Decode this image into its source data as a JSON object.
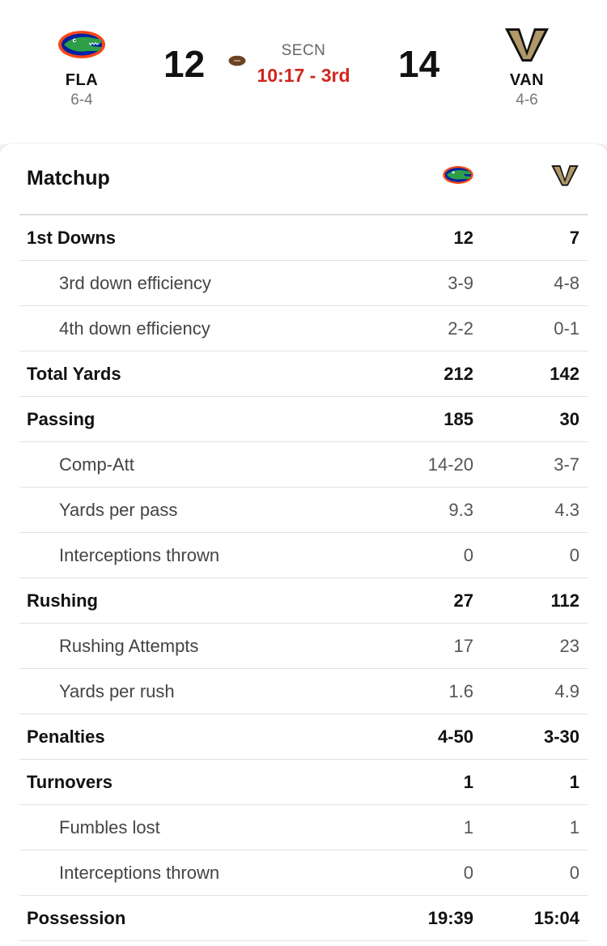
{
  "game": {
    "network": "SECN",
    "clock": "10:17 - 3rd",
    "home": {
      "abbr": "FLA",
      "record": "6-4",
      "score": "12",
      "logo": "gator-logo",
      "primary_color": "#0021a5",
      "secondary_color": "#fa4616"
    },
    "away": {
      "abbr": "VAN",
      "record": "4-6",
      "score": "14",
      "logo": "v-star-logo",
      "primary_color": "#866d4b"
    }
  },
  "matchup": {
    "title": "Matchup",
    "rows": [
      {
        "label": "1st Downs",
        "home": "12",
        "away": "7",
        "type": "main"
      },
      {
        "label": "3rd down efficiency",
        "home": "3-9",
        "away": "4-8",
        "type": "sub"
      },
      {
        "label": "4th down efficiency",
        "home": "2-2",
        "away": "0-1",
        "type": "sub"
      },
      {
        "label": "Total Yards",
        "home": "212",
        "away": "142",
        "type": "main"
      },
      {
        "label": "Passing",
        "home": "185",
        "away": "30",
        "type": "main"
      },
      {
        "label": "Comp-Att",
        "home": "14-20",
        "away": "3-7",
        "type": "sub"
      },
      {
        "label": "Yards per pass",
        "home": "9.3",
        "away": "4.3",
        "type": "sub"
      },
      {
        "label": "Interceptions thrown",
        "home": "0",
        "away": "0",
        "type": "sub"
      },
      {
        "label": "Rushing",
        "home": "27",
        "away": "112",
        "type": "main"
      },
      {
        "label": "Rushing Attempts",
        "home": "17",
        "away": "23",
        "type": "sub"
      },
      {
        "label": "Yards per rush",
        "home": "1.6",
        "away": "4.9",
        "type": "sub"
      },
      {
        "label": "Penalties",
        "home": "4-50",
        "away": "3-30",
        "type": "main"
      },
      {
        "label": "Turnovers",
        "home": "1",
        "away": "1",
        "type": "main"
      },
      {
        "label": "Fumbles lost",
        "home": "1",
        "away": "1",
        "type": "sub"
      },
      {
        "label": "Interceptions thrown",
        "home": "0",
        "away": "0",
        "type": "sub"
      },
      {
        "label": "Possession",
        "home": "19:39",
        "away": "15:04",
        "type": "main"
      }
    ]
  }
}
